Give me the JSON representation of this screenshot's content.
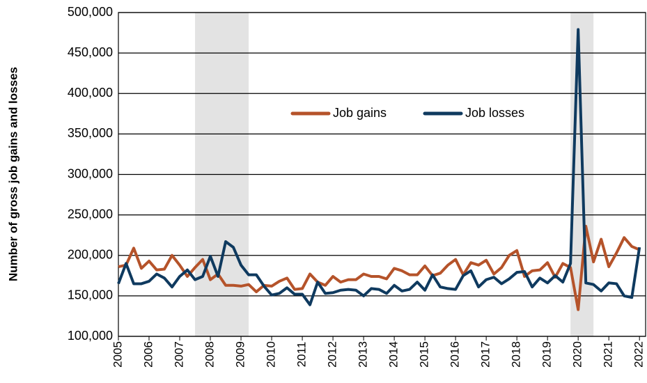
{
  "chart_data": {
    "type": "line",
    "y_label": "Number of gross job gains and losses",
    "x": [
      2005,
      2005.25,
      2005.5,
      2005.75,
      2006,
      2006.25,
      2006.5,
      2006.75,
      2007,
      2007.25,
      2007.5,
      2007.75,
      2008,
      2008.25,
      2008.5,
      2008.75,
      2009,
      2009.25,
      2009.5,
      2009.75,
      2010,
      2010.25,
      2010.5,
      2010.75,
      2011,
      2011.25,
      2011.5,
      2011.75,
      2012,
      2012.25,
      2012.5,
      2012.75,
      2013,
      2013.25,
      2013.5,
      2013.75,
      2014,
      2014.25,
      2014.5,
      2014.75,
      2015,
      2015.25,
      2015.5,
      2015.75,
      2016,
      2016.25,
      2016.5,
      2016.75,
      2017,
      2017.25,
      2017.5,
      2017.75,
      2018,
      2018.25,
      2018.5,
      2018.75,
      2019,
      2019.25,
      2019.5,
      2019.75,
      2020,
      2020.25,
      2020.5,
      2020.75,
      2021,
      2021.25,
      2021.5,
      2021.75,
      2022
    ],
    "series": [
      {
        "name": "Job gains",
        "color": "#b5532a",
        "values": [
          186000,
          188000,
          209000,
          184000,
          193000,
          182000,
          183000,
          200000,
          188000,
          174000,
          185000,
          195000,
          170000,
          177000,
          163000,
          163000,
          162000,
          164000,
          155000,
          163000,
          162000,
          168000,
          172000,
          158000,
          159000,
          177000,
          167000,
          163000,
          174000,
          167000,
          170000,
          170000,
          177000,
          174000,
          174000,
          171000,
          184000,
          181000,
          176000,
          176000,
          187000,
          175000,
          178000,
          188000,
          195000,
          176000,
          191000,
          188000,
          194000,
          177000,
          185000,
          200000,
          206000,
          174000,
          181000,
          182000,
          191000,
          173000,
          190000,
          185000,
          133000,
          236000,
          192000,
          220000,
          186000,
          203000,
          222000,
          211000,
          207000
        ]
      },
      {
        "name": "Job losses",
        "color": "#0f3a5f",
        "values": [
          165000,
          190000,
          165000,
          165000,
          168000,
          177000,
          172000,
          161000,
          174000,
          182000,
          170000,
          174000,
          199000,
          174000,
          217000,
          210000,
          188000,
          176000,
          176000,
          162000,
          151000,
          153000,
          160000,
          152000,
          152000,
          139000,
          167000,
          153000,
          154000,
          157000,
          158000,
          157000,
          150000,
          159000,
          158000,
          153000,
          163000,
          156000,
          158000,
          167000,
          157000,
          176000,
          161000,
          159000,
          158000,
          175000,
          181000,
          161000,
          170000,
          173000,
          165000,
          171000,
          179000,
          180000,
          161000,
          172000,
          166000,
          175000,
          167000,
          190000,
          479000,
          166000,
          164000,
          156000,
          166000,
          165000,
          150000,
          148000,
          210000
        ]
      }
    ],
    "shading": [
      [
        2007.5,
        2009.25
      ],
      [
        2019.75,
        2020.5
      ]
    ],
    "xlim": [
      2005,
      2022.2
    ],
    "xticks": [
      2005,
      2006,
      2007,
      2008,
      2009,
      2010,
      2011,
      2012,
      2013,
      2014,
      2015,
      2016,
      2017,
      2018,
      2019,
      2020,
      2021,
      2022
    ],
    "ylim": [
      100000,
      500000
    ],
    "yticks": [
      {
        "value": 100000,
        "label": "100,000"
      },
      {
        "value": 150000,
        "label": "150,000"
      },
      {
        "value": 200000,
        "label": "200,000"
      },
      {
        "value": 250000,
        "label": "250,000"
      },
      {
        "value": 300000,
        "label": "300,000"
      },
      {
        "value": 350000,
        "label": "350,000"
      },
      {
        "value": 400000,
        "label": "400,000"
      },
      {
        "value": 450000,
        "label": "450,000"
      },
      {
        "value": 500000,
        "label": "500,000"
      }
    ],
    "grid": true,
    "legend": "upper-center"
  }
}
